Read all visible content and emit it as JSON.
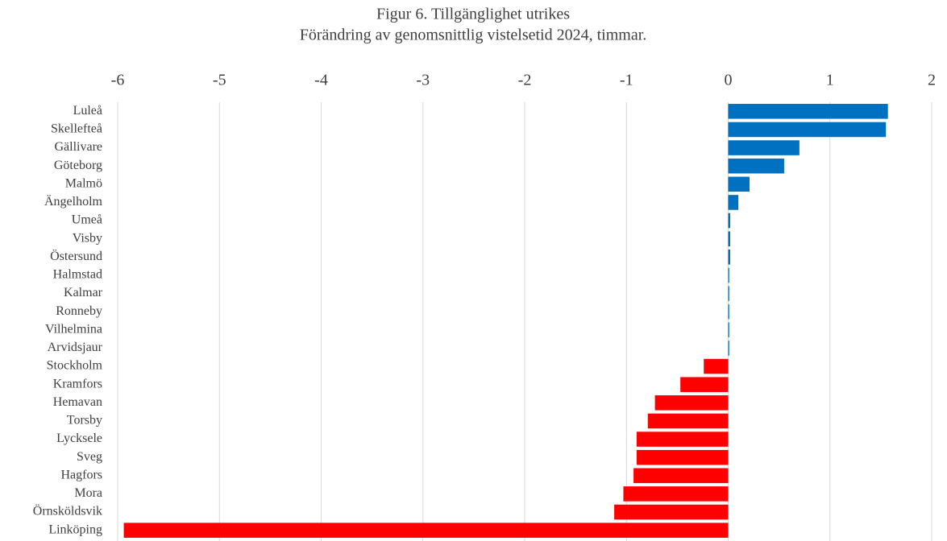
{
  "chart_data": {
    "type": "bar",
    "orientation": "horizontal",
    "title": "Figur 6. Tillgänglighet utrikes",
    "subtitle": "Förändring av genomsnittlig vistelsetid 2024, timmar.",
    "categories": [
      "Luleå",
      "Skellefteå",
      "Gällivare",
      "Göteborg",
      "Malmö",
      "Ängelholm",
      "Umeå",
      "Visby",
      "Östersund",
      "Halmstad",
      "Kalmar",
      "Ronneby",
      "Vilhelmina",
      "Arvidsjaur",
      "Stockholm",
      "Kramfors",
      "Hemavan",
      "Torsby",
      "Lycksele",
      "Sveg",
      "Hagfors",
      "Mora",
      "Örnsköldsvik",
      "Linköping"
    ],
    "values": [
      1.57,
      1.55,
      0.7,
      0.55,
      0.21,
      0.1,
      0.02,
      0.02,
      0.02,
      0.01,
      0.01,
      0.01,
      0.01,
      0.01,
      -0.24,
      -0.47,
      -0.72,
      -0.79,
      -0.9,
      -0.9,
      -0.93,
      -1.03,
      -1.12,
      -5.94
    ],
    "positive_color": "#0070c0",
    "negative_color": "#ff0000",
    "xlim": [
      -6,
      2
    ],
    "xticks": [
      -6,
      -5,
      -4,
      -3,
      -2,
      -1,
      0,
      1,
      2
    ],
    "grid": true,
    "axis_position": "top"
  }
}
